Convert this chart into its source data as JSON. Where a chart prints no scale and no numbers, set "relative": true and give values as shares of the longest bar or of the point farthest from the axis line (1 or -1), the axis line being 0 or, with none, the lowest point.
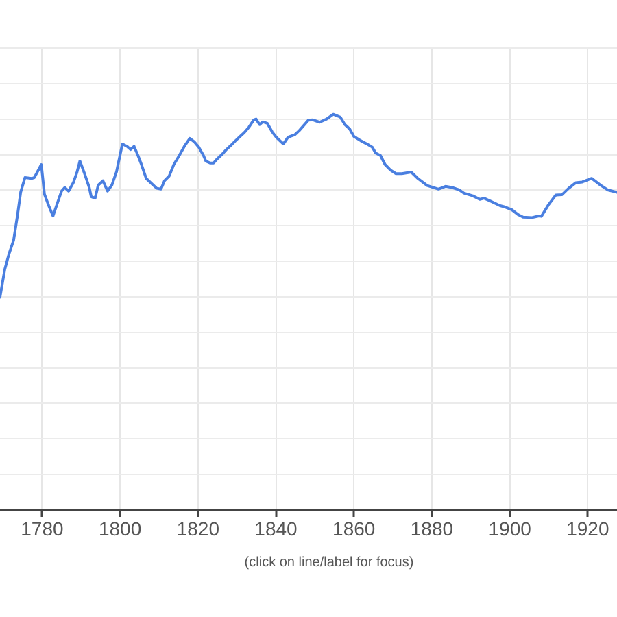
{
  "chart_data": {
    "type": "line",
    "relative": true,
    "x": [
      1769.2,
      1770.4,
      1771.5,
      1772.7,
      1773.7,
      1774.5,
      1775.6,
      1777.4,
      1778.0,
      1779.8,
      1780.6,
      1781.7,
      1782.8,
      1783.9,
      1785.0,
      1785.8,
      1786.8,
      1788.0,
      1788.9,
      1789.7,
      1790.9,
      1792.1,
      1792.6,
      1793.6,
      1794.4,
      1795.6,
      1796.8,
      1797.9,
      1799.1,
      1800.6,
      1801.8,
      1802.7,
      1803.6,
      1804.6,
      1805.5,
      1806.7,
      1808.2,
      1809.4,
      1810.5,
      1811.4,
      1812.6,
      1813.8,
      1815.2,
      1816.5,
      1817.9,
      1819.0,
      1820.2,
      1821.4,
      1822.0,
      1823.1,
      1824.0,
      1824.9,
      1826.1,
      1827.2,
      1828.4,
      1829.6,
      1830.8,
      1831.9,
      1833.1,
      1834.3,
      1834.9,
      1835.8,
      1836.6,
      1837.8,
      1839.0,
      1840.1,
      1841.9,
      1843.1,
      1844.8,
      1846.0,
      1848.3,
      1849.5,
      1851.2,
      1853.0,
      1854.7,
      1856.5,
      1857.7,
      1858.9,
      1860.0,
      1861.8,
      1863.5,
      1864.7,
      1865.6,
      1866.8,
      1868.0,
      1869.4,
      1870.8,
      1872.3,
      1874.7,
      1876.4,
      1878.8,
      1881.7,
      1883.5,
      1885.2,
      1887.0,
      1888.2,
      1890.5,
      1892.3,
      1893.4,
      1895.2,
      1897.5,
      1898.7,
      1900.5,
      1902.2,
      1903.4,
      1905.7,
      1907.5,
      1908.1,
      1909.9,
      1911.8,
      1913.4,
      1915.1,
      1916.9,
      1918.6,
      1921.0,
      1923.3,
      1925.1,
      1927.4
    ],
    "series": [
      {
        "color": "#4a7fe0",
        "values": [
          0.538,
          0.607,
          0.647,
          0.682,
          0.746,
          0.803,
          0.84,
          0.838,
          0.84,
          0.873,
          0.798,
          0.769,
          0.743,
          0.775,
          0.806,
          0.815,
          0.806,
          0.827,
          0.852,
          0.882,
          0.85,
          0.815,
          0.792,
          0.788,
          0.821,
          0.832,
          0.806,
          0.821,
          0.855,
          0.925,
          0.919,
          0.911,
          0.919,
          0.896,
          0.873,
          0.838,
          0.824,
          0.813,
          0.811,
          0.832,
          0.844,
          0.873,
          0.896,
          0.919,
          0.939,
          0.931,
          0.917,
          0.896,
          0.882,
          0.877,
          0.877,
          0.887,
          0.898,
          0.91,
          0.921,
          0.933,
          0.944,
          0.954,
          0.968,
          0.986,
          0.988,
          0.974,
          0.981,
          0.977,
          0.956,
          0.942,
          0.925,
          0.942,
          0.948,
          0.959,
          0.985,
          0.986,
          0.98,
          0.988,
          1.0,
          0.993,
          0.974,
          0.963,
          0.944,
          0.933,
          0.924,
          0.917,
          0.902,
          0.896,
          0.873,
          0.859,
          0.85,
          0.85,
          0.854,
          0.838,
          0.82,
          0.811,
          0.818,
          0.815,
          0.809,
          0.801,
          0.794,
          0.785,
          0.788,
          0.78,
          0.769,
          0.766,
          0.759,
          0.746,
          0.74,
          0.739,
          0.743,
          0.742,
          0.771,
          0.796,
          0.797,
          0.813,
          0.827,
          0.829,
          0.838,
          0.821,
          0.809,
          0.803
        ]
      }
    ],
    "xlim": [
      1769.2,
      1927.5
    ],
    "xticks": [
      1780,
      1800,
      1820,
      1840,
      1860,
      1880,
      1900,
      1920
    ],
    "grid": true,
    "annotations": [
      "(click on line/label for focus)"
    ]
  }
}
